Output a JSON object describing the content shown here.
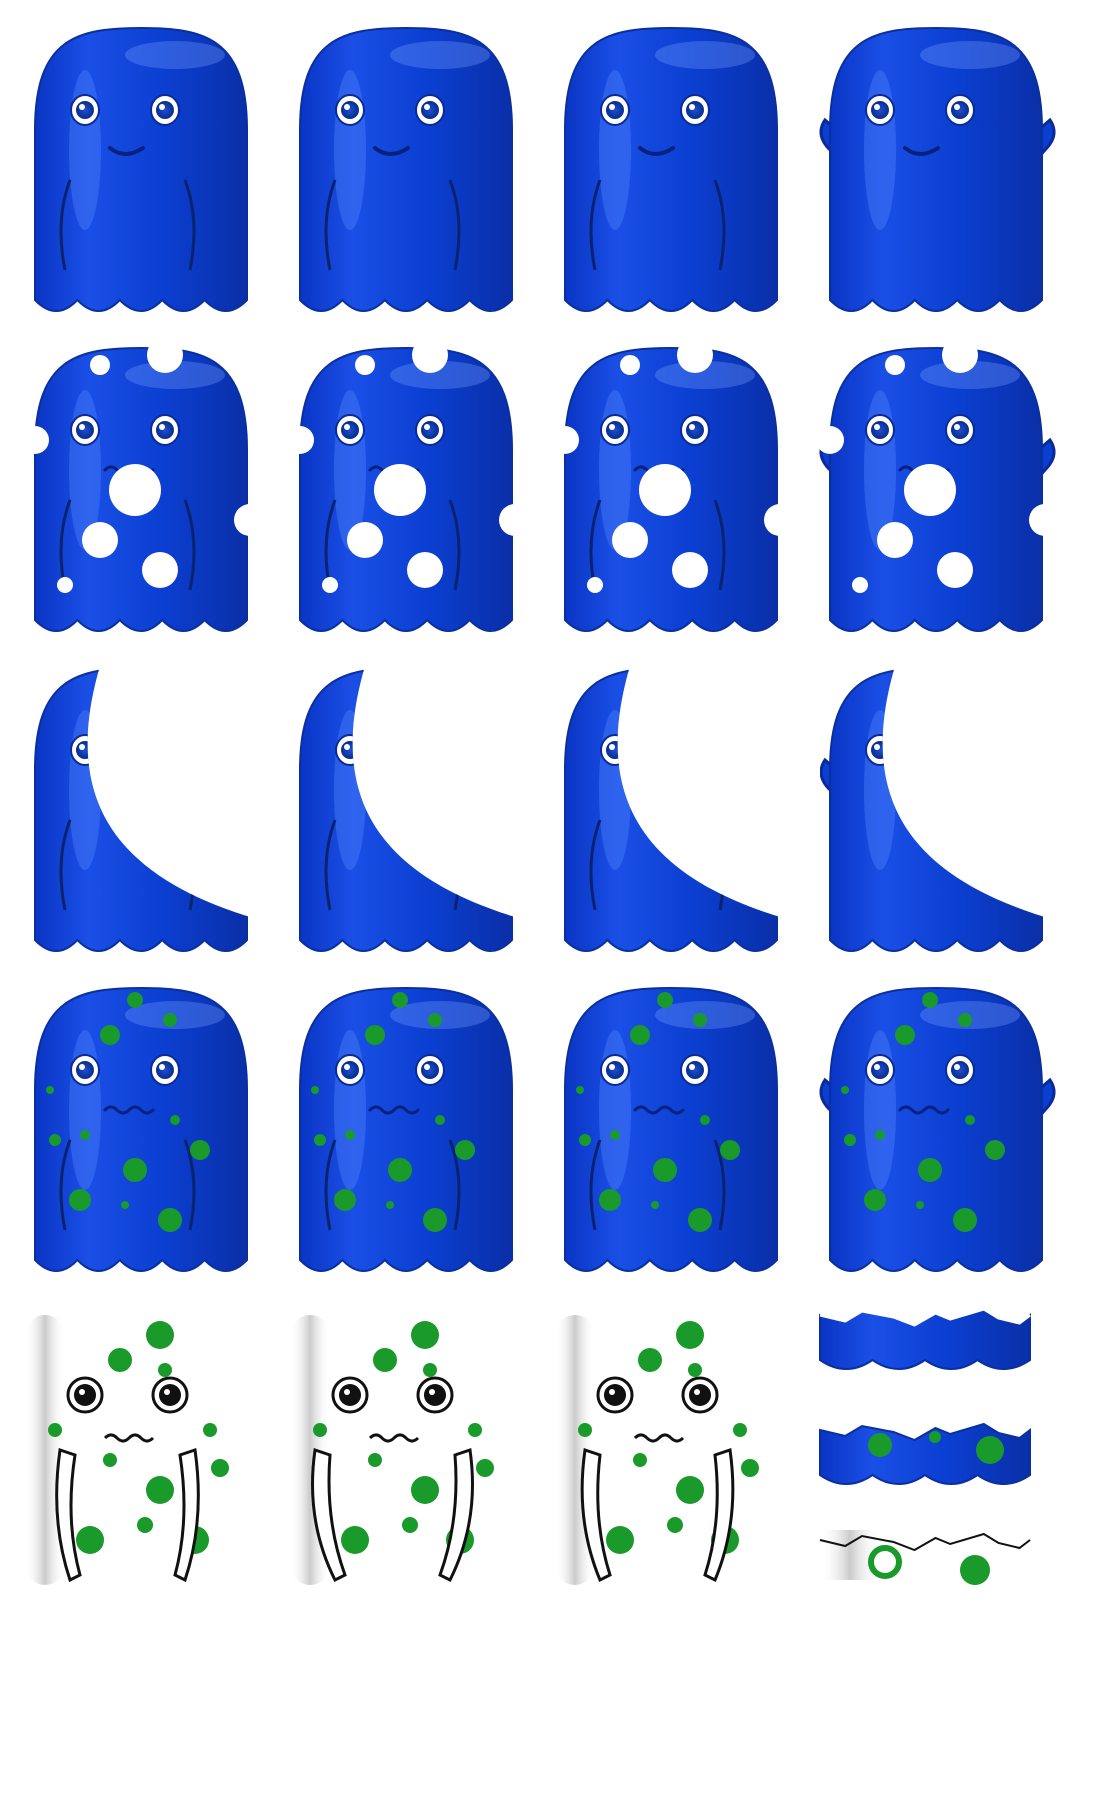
{
  "sprite_sheet": {
    "background": "#ffffff",
    "palette": {
      "body": "#0b3fd1",
      "body_light": "#3b73ff",
      "body_dark": "#0a2fa0",
      "outline": "#0a2a9a",
      "eye_white": "#ffffff",
      "pupil": "#0a2d8a",
      "green": "#1a9a2a",
      "hole": "#ffffff",
      "line": "#111111",
      "shadow": "#cfcfcf"
    },
    "rows": [
      {
        "name": "normal",
        "variant": "normal",
        "frames": [
          {
            "pose": "idle"
          },
          {
            "pose": "walk-a"
          },
          {
            "pose": "walk-b"
          },
          {
            "pose": "arms-up"
          }
        ]
      },
      {
        "name": "damaged-holes",
        "variant": "holes",
        "frames": [
          {
            "pose": "idle"
          },
          {
            "pose": "walk-a"
          },
          {
            "pose": "walk-b"
          },
          {
            "pose": "arms-up"
          }
        ]
      },
      {
        "name": "bitten-crescent",
        "variant": "crescent",
        "frames": [
          {
            "pose": "idle"
          },
          {
            "pose": "walk-a"
          },
          {
            "pose": "walk-b"
          },
          {
            "pose": "arms-up"
          }
        ]
      },
      {
        "name": "sick-spots",
        "variant": "spots",
        "frames": [
          {
            "pose": "idle"
          },
          {
            "pose": "walk-a"
          },
          {
            "pose": "walk-b"
          },
          {
            "pose": "arms-up"
          }
        ]
      },
      {
        "name": "ghost-outline",
        "variant": "ghost",
        "frames": [
          {
            "pose": "idle"
          },
          {
            "pose": "walk-a"
          },
          {
            "pose": "walk-b"
          },
          {
            "pose": "fragments"
          }
        ]
      }
    ]
  }
}
